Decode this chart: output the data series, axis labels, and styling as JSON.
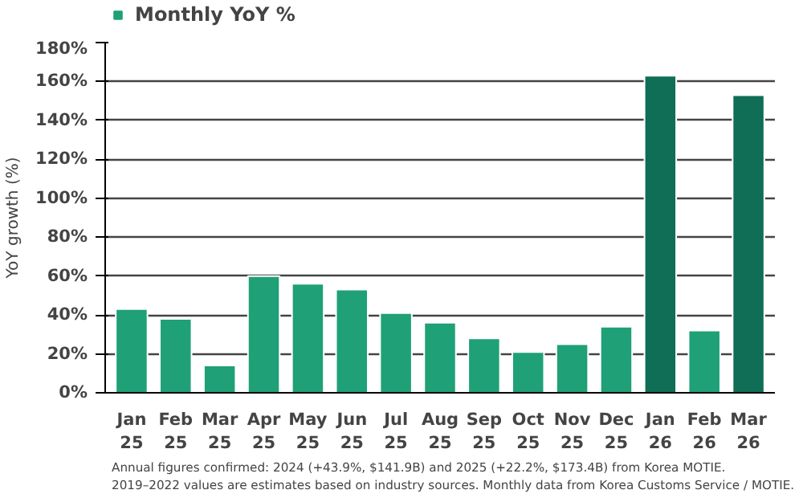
{
  "chart_data": {
    "type": "bar",
    "ylabel": "YoY growth (%)",
    "categories": [
      "Jan\n25",
      "Feb\n25",
      "Mar\n25",
      "Apr\n25",
      "May\n25",
      "Jun\n25",
      "Jul\n25",
      "Aug\n25",
      "Sep\n25",
      "Oct\n25",
      "Nov\n25",
      "Dec\n25",
      "Jan\n26",
      "Feb\n26",
      "Mar\n26"
    ],
    "series": [
      {
        "name": "Monthly YoY %",
        "color": "#1fa077",
        "values": [
          43,
          38,
          14,
          60,
          56,
          53,
          41,
          36,
          28,
          21,
          25,
          34,
          163,
          32,
          153
        ],
        "colors": [
          "#1fa077",
          "#1fa077",
          "#1fa077",
          "#1fa077",
          "#1fa077",
          "#1fa077",
          "#1fa077",
          "#1fa077",
          "#1fa077",
          "#1fa077",
          "#1fa077",
          "#1fa077",
          "#0f6e55",
          "#1fa077",
          "#0f6e55"
        ]
      }
    ],
    "ylim": [
      0,
      180
    ],
    "yticks": [
      {
        "value": 0,
        "label": "0%"
      },
      {
        "value": 20,
        "label": "20%"
      },
      {
        "value": 40,
        "label": "40%"
      },
      {
        "value": 60,
        "label": "60%"
      },
      {
        "value": 80,
        "label": "80%"
      },
      {
        "value": 100,
        "label": "100%"
      },
      {
        "value": 120,
        "label": "120%"
      },
      {
        "value": 140,
        "label": "140%"
      },
      {
        "value": 160,
        "label": "160%"
      },
      {
        "value": 180,
        "label": "180%"
      }
    ],
    "grid": "y",
    "legend": "top left",
    "annotations": [
      "Annual figures confirmed: 2024 (+43.9%, $141.9B) and 2025 (+22.2%, $173.4B) from Korea MOTIE.",
      "2019–2022 values are estimates based on industry sources. Monthly data from Korea Customs Service / MOTIE."
    ]
  }
}
